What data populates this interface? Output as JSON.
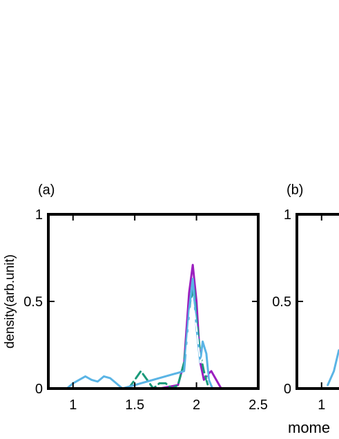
{
  "chart_data": [
    {
      "panel": "(a)",
      "type": "line",
      "xlim": [
        0.8,
        2.5
      ],
      "ylim": [
        0,
        1
      ],
      "xticks": [
        "1",
        "1.5",
        "2",
        "2.5"
      ],
      "yticks": [
        "0",
        "0.5",
        "1"
      ],
      "ylabel": "density(arb.unit)",
      "xlabel": "",
      "grid": false,
      "legend": "none",
      "series": [
        {
          "color": "#9b1fbf",
          "style": "solid",
          "x": [
            1.7,
            1.85,
            1.9,
            1.94,
            1.97,
            2.0,
            2.03,
            2.06,
            2.09,
            2.12,
            2.16,
            2.2
          ],
          "y": [
            0.0,
            0.02,
            0.15,
            0.55,
            0.71,
            0.5,
            0.15,
            0.05,
            0.08,
            0.1,
            0.05,
            0.0
          ]
        },
        {
          "color": "#1a9a7a",
          "style": "dashed",
          "x": [
            1.45,
            1.5,
            1.55,
            1.6,
            1.65,
            1.7,
            1.75,
            1.8,
            1.85,
            1.9,
            1.95,
            1.98,
            2.0,
            2.03,
            2.06,
            2.1
          ],
          "y": [
            0.0,
            0.05,
            0.1,
            0.05,
            0.0,
            0.03,
            0.03,
            0.0,
            0.02,
            0.15,
            0.5,
            0.58,
            0.4,
            0.2,
            0.1,
            0.0
          ]
        },
        {
          "color": "#5ab4e5",
          "style": "solid",
          "x": [
            0.95,
            1.0,
            1.05,
            1.1,
            1.15,
            1.2,
            1.25,
            1.3,
            1.35,
            1.4,
            1.9,
            1.94,
            1.97,
            2.0,
            2.03,
            2.05,
            2.08,
            2.1,
            2.13
          ],
          "y": [
            0.0,
            0.03,
            0.05,
            0.07,
            0.05,
            0.04,
            0.07,
            0.06,
            0.03,
            0.0,
            0.1,
            0.45,
            0.63,
            0.35,
            0.15,
            0.27,
            0.2,
            0.05,
            0.0
          ]
        },
        {
          "color": "#ffffff",
          "style": "dashed",
          "x": [
            1.92,
            1.95,
            1.97,
            2.0,
            2.03,
            2.06,
            2.09
          ],
          "y": [
            0.2,
            0.45,
            0.5,
            0.35,
            0.15,
            0.2,
            0.05
          ]
        }
      ]
    },
    {
      "panel": "(b)",
      "type": "line",
      "xlim": [
        0.8,
        2.5
      ],
      "ylim": [
        0,
        1
      ],
      "xticks": [
        "1"
      ],
      "yticks": [
        "0",
        "0.5",
        "1"
      ],
      "xlabel": "mome",
      "ylabel": "",
      "grid": false,
      "legend": "none",
      "series": [
        {
          "color": "#5ab4e5",
          "style": "solid",
          "x": [
            1.05,
            1.1,
            1.14
          ],
          "y": [
            0.02,
            0.1,
            0.22
          ]
        }
      ]
    }
  ]
}
